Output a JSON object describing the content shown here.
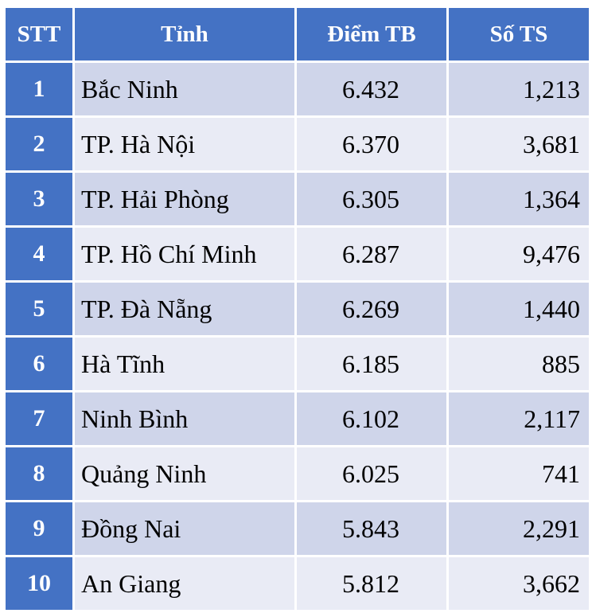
{
  "table": {
    "headers": {
      "stt": "STT",
      "tinh": "Tỉnh",
      "diem": "Điểm TB",
      "so": "Số TS"
    },
    "rows": [
      {
        "stt": "1",
        "tinh": "Bắc Ninh",
        "diem": "6.432",
        "so": "1,213"
      },
      {
        "stt": "2",
        "tinh": "TP. Hà Nội",
        "diem": "6.370",
        "so": "3,681"
      },
      {
        "stt": "3",
        "tinh": "TP. Hải Phòng",
        "diem": "6.305",
        "so": "1,364"
      },
      {
        "stt": "4",
        "tinh": "TP. Hồ Chí Minh",
        "diem": "6.287",
        "so": "9,476"
      },
      {
        "stt": "5",
        "tinh": "TP. Đà Nẵng",
        "diem": "6.269",
        "so": "1,440"
      },
      {
        "stt": "6",
        "tinh": "Hà Tĩnh",
        "diem": "6.185",
        "so": "885"
      },
      {
        "stt": "7",
        "tinh": "Ninh Bình",
        "diem": "6.102",
        "so": "2,117"
      },
      {
        "stt": "8",
        "tinh": "Quảng Ninh",
        "diem": "6.025",
        "so": "741"
      },
      {
        "stt": "9",
        "tinh": "Đồng Nai",
        "diem": "5.843",
        "so": "2,291"
      },
      {
        "stt": "10",
        "tinh": "An Giang",
        "diem": "5.812",
        "so": "3,662"
      }
    ]
  },
  "colors": {
    "header_bg": "#4472c4",
    "row_odd_bg": "#cfd5ea",
    "row_even_bg": "#e9ebf5"
  }
}
